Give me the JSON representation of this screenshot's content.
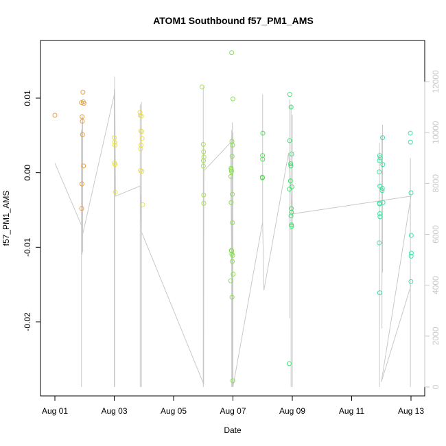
{
  "chart_data": {
    "type": "scatter",
    "title": "ATOM1 Southbound f57_PM1_AMS",
    "xlabel": "Date",
    "ylabel": "f57_PM1_AMS",
    "x_is_date": true,
    "xlim": [
      "2023-08-01",
      "2023-08-13"
    ],
    "x_ticks": [
      {
        "x": "2023-08-01",
        "label": "Aug 01"
      },
      {
        "x": "2023-08-03",
        "label": "Aug 03"
      },
      {
        "x": "2023-08-05",
        "label": "Aug 05"
      },
      {
        "x": "2023-08-07",
        "label": "Aug 07"
      },
      {
        "x": "2023-08-09",
        "label": "Aug 09"
      },
      {
        "x": "2023-08-11",
        "label": "Aug 11"
      },
      {
        "x": "2023-08-13",
        "label": "Aug 13"
      }
    ],
    "ylim": [
      -0.028,
      0.016
    ],
    "y_ticks": [
      {
        "y": 0.01,
        "label": "0.01"
      },
      {
        "y": 0.0,
        "label": "0.00"
      },
      {
        "y": -0.01,
        "label": "-0.01"
      },
      {
        "y": -0.02,
        "label": "-0.02"
      }
    ],
    "y2lim": [
      0,
      12000
    ],
    "y2_ticks": [
      {
        "y": 0,
        "label": "0"
      },
      {
        "y": 2000,
        "label": "2000"
      },
      {
        "y": 4000,
        "label": "4000"
      },
      {
        "y": 6000,
        "label": "6000"
      },
      {
        "y": 8000,
        "label": "8000"
      },
      {
        "y": 10000,
        "label": "10000"
      },
      {
        "y": 12000,
        "label": "12000"
      }
    ],
    "points": [
      {
        "x": "2023-08-01T00:00",
        "y": 0.0077,
        "color": "#e8a040"
      },
      {
        "x": "2023-08-01T21:30",
        "y": 0.0094,
        "color": "#e8a040"
      },
      {
        "x": "2023-08-01T22:00",
        "y": 0.0075,
        "color": "#e8a040"
      },
      {
        "x": "2023-08-01T22:10",
        "y": 0.0069,
        "color": "#e8a040"
      },
      {
        "x": "2023-08-01T22:20",
        "y": 0.0051,
        "color": "#e8a040"
      },
      {
        "x": "2023-08-01T22:40",
        "y": 0.0108,
        "color": "#e8a040"
      },
      {
        "x": "2023-08-01T23:00",
        "y": 0.0095,
        "color": "#e8a040"
      },
      {
        "x": "2023-08-01T23:30",
        "y": 0.0093,
        "color": "#e8a040"
      },
      {
        "x": "2023-08-01T23:10",
        "y": 0.0009,
        "color": "#e8a040"
      },
      {
        "x": "2023-08-01T21:50",
        "y": -0.0015,
        "color": "#e8a040"
      },
      {
        "x": "2023-08-01T21:40",
        "y": -0.0048,
        "color": "#e8a040"
      },
      {
        "x": "2023-08-03T00:00",
        "y": 0.0047,
        "color": "#e8e050"
      },
      {
        "x": "2023-08-03T00:20",
        "y": 0.0041,
        "color": "#e8e050"
      },
      {
        "x": "2023-08-03T00:30",
        "y": 0.0037,
        "color": "#e8e050"
      },
      {
        "x": "2023-08-03T00:10",
        "y": 0.0013,
        "color": "#e8e050"
      },
      {
        "x": "2023-08-03T00:40",
        "y": 0.0011,
        "color": "#e8e050"
      },
      {
        "x": "2023-08-03T00:50",
        "y": -0.0026,
        "color": "#e8e050"
      },
      {
        "x": "2023-08-03T20:50",
        "y": 0.0081,
        "color": "#e8e050"
      },
      {
        "x": "2023-08-03T21:00",
        "y": 0.0077,
        "color": "#e8e050"
      },
      {
        "x": "2023-08-03T22:00",
        "y": 0.0076,
        "color": "#e8e050"
      },
      {
        "x": "2023-08-03T21:30",
        "y": 0.0056,
        "color": "#e8e050"
      },
      {
        "x": "2023-08-03T22:10",
        "y": 0.0055,
        "color": "#e8e050"
      },
      {
        "x": "2023-08-03T22:30",
        "y": 0.0046,
        "color": "#e8e050"
      },
      {
        "x": "2023-08-03T21:40",
        "y": 0.0037,
        "color": "#e8e050"
      },
      {
        "x": "2023-08-03T21:20",
        "y": 0.0032,
        "color": "#e8e050"
      },
      {
        "x": "2023-08-03T21:10",
        "y": 0.0003,
        "color": "#e8e050"
      },
      {
        "x": "2023-08-03T22:20",
        "y": 0.0002,
        "color": "#e8e050"
      },
      {
        "x": "2023-08-03T23:00",
        "y": -0.0043,
        "color": "#e8e050"
      },
      {
        "x": "2023-08-05T23:00",
        "y": 0.0115,
        "color": "#a8e050"
      },
      {
        "x": "2023-08-06T00:00",
        "y": 0.0038,
        "color": "#a8e050"
      },
      {
        "x": "2023-08-06T00:15",
        "y": 0.0028,
        "color": "#a8e050"
      },
      {
        "x": "2023-08-06T00:30",
        "y": 0.0021,
        "color": "#a8e050"
      },
      {
        "x": "2023-08-06T00:10",
        "y": 0.0016,
        "color": "#a8e050"
      },
      {
        "x": "2023-08-06T00:05",
        "y": 0.0009,
        "color": "#a8e050"
      },
      {
        "x": "2023-08-06T00:20",
        "y": -0.003,
        "color": "#a8e050"
      },
      {
        "x": "2023-08-06T00:25",
        "y": -0.0041,
        "color": "#a8e050"
      },
      {
        "x": "2023-08-06T23:00",
        "y": 0.0161,
        "color": "#88e050"
      },
      {
        "x": "2023-08-07T00:00",
        "y": 0.0099,
        "color": "#88e050"
      },
      {
        "x": "2023-08-06T23:10",
        "y": 0.0042,
        "color": "#88e050"
      },
      {
        "x": "2023-08-06T23:40",
        "y": 0.0037,
        "color": "#88e050"
      },
      {
        "x": "2023-08-06T23:20",
        "y": 0.0022,
        "color": "#88e050"
      },
      {
        "x": "2023-08-06T22:30",
        "y": 0.0006,
        "color": "#88e050"
      },
      {
        "x": "2023-08-06T22:40",
        "y": 0.0004,
        "color": "#88e050"
      },
      {
        "x": "2023-08-06T22:50",
        "y": 0.0002,
        "color": "#88e050"
      },
      {
        "x": "2023-08-06T22:20",
        "y": -0.0005,
        "color": "#88e050"
      },
      {
        "x": "2023-08-06T23:30",
        "y": -0.0029,
        "color": "#88e050"
      },
      {
        "x": "2023-08-06T22:35",
        "y": -0.004,
        "color": "#88e050"
      },
      {
        "x": "2023-08-06T23:35",
        "y": -0.0067,
        "color": "#88e050"
      },
      {
        "x": "2023-08-06T22:45",
        "y": -0.0104,
        "color": "#88e050"
      },
      {
        "x": "2023-08-06T22:55",
        "y": -0.0105,
        "color": "#88e050"
      },
      {
        "x": "2023-08-06T23:05",
        "y": -0.0109,
        "color": "#88e050"
      },
      {
        "x": "2023-08-06T23:45",
        "y": -0.0111,
        "color": "#88e050"
      },
      {
        "x": "2023-08-06T23:25",
        "y": -0.0119,
        "color": "#88e050"
      },
      {
        "x": "2023-08-07T00:10",
        "y": -0.0136,
        "color": "#88e050"
      },
      {
        "x": "2023-08-06T22:15",
        "y": -0.0145,
        "color": "#88e050"
      },
      {
        "x": "2023-08-06T23:15",
        "y": -0.0167,
        "color": "#88e050"
      },
      {
        "x": "2023-08-06T23:50",
        "y": -0.0279,
        "color": "#88e050"
      },
      {
        "x": "2023-08-08T00:10",
        "y": 0.0053,
        "color": "#50e050"
      },
      {
        "x": "2023-08-07T23:55",
        "y": 0.0023,
        "color": "#50e050"
      },
      {
        "x": "2023-08-08T00:00",
        "y": 0.0018,
        "color": "#50e050"
      },
      {
        "x": "2023-08-07T23:45",
        "y": -0.0006,
        "color": "#50e050"
      },
      {
        "x": "2023-08-07T23:50",
        "y": -0.0007,
        "color": "#50e050"
      },
      {
        "x": "2023-08-08T22:00",
        "y": 0.0105,
        "color": "#40e070"
      },
      {
        "x": "2023-08-08T23:00",
        "y": 0.0088,
        "color": "#40e070"
      },
      {
        "x": "2023-08-08T21:50",
        "y": 0.0043,
        "color": "#40e070"
      },
      {
        "x": "2023-08-08T23:30",
        "y": 0.0025,
        "color": "#40e070"
      },
      {
        "x": "2023-08-08T22:40",
        "y": 0.0012,
        "color": "#40e070"
      },
      {
        "x": "2023-08-08T22:50",
        "y": 0.0009,
        "color": "#40e070"
      },
      {
        "x": "2023-08-08T22:30",
        "y": -0.0011,
        "color": "#40e070"
      },
      {
        "x": "2023-08-08T23:40",
        "y": -0.0019,
        "color": "#40e070"
      },
      {
        "x": "2023-08-08T21:40",
        "y": -0.0022,
        "color": "#40e070"
      },
      {
        "x": "2023-08-08T23:10",
        "y": -0.0048,
        "color": "#40e070"
      },
      {
        "x": "2023-08-08T23:20",
        "y": -0.0053,
        "color": "#40e070"
      },
      {
        "x": "2023-08-08T22:55",
        "y": -0.0058,
        "color": "#40e070"
      },
      {
        "x": "2023-08-08T23:15",
        "y": -0.007,
        "color": "#40e070"
      },
      {
        "x": "2023-08-08T23:25",
        "y": -0.0072,
        "color": "#40e070"
      },
      {
        "x": "2023-08-08T21:30",
        "y": -0.0256,
        "color": "#40e070"
      },
      {
        "x": "2023-08-11T22:40",
        "y": 0.0023,
        "color": "#40e0a0"
      },
      {
        "x": "2023-08-11T23:00",
        "y": 0.002,
        "color": "#40e0a0"
      },
      {
        "x": "2023-08-11T22:30",
        "y": 0.0016,
        "color": "#40e0a0"
      },
      {
        "x": "2023-08-12T01:00",
        "y": 0.0047,
        "color": "#40e0a0"
      },
      {
        "x": "2023-08-12T01:10",
        "y": 0.0011,
        "color": "#40e0a0"
      },
      {
        "x": "2023-08-11T22:20",
        "y": 0.0001,
        "color": "#40e0a0"
      },
      {
        "x": "2023-08-11T22:50",
        "y": -0.0018,
        "color": "#40e0a0"
      },
      {
        "x": "2023-08-12T00:50",
        "y": -0.0021,
        "color": "#40e0a0"
      },
      {
        "x": "2023-08-12T00:40",
        "y": -0.0024,
        "color": "#40e0a0"
      },
      {
        "x": "2023-08-11T22:25",
        "y": -0.0041,
        "color": "#40e0a0"
      },
      {
        "x": "2023-08-11T22:35",
        "y": -0.0042,
        "color": "#40e0a0"
      },
      {
        "x": "2023-08-12T01:20",
        "y": -0.004,
        "color": "#40e0a0"
      },
      {
        "x": "2023-08-11T22:45",
        "y": -0.0055,
        "color": "#40e0a0"
      },
      {
        "x": "2023-08-11T22:55",
        "y": -0.0059,
        "color": "#40e0a0"
      },
      {
        "x": "2023-08-11T22:15",
        "y": -0.0094,
        "color": "#40e0a0"
      },
      {
        "x": "2023-08-11T22:40",
        "y": -0.0161,
        "color": "#40e0a0"
      },
      {
        "x": "2023-08-12T23:30",
        "y": 0.0053,
        "color": "#40e0b0"
      },
      {
        "x": "2023-08-12T23:35",
        "y": 0.0041,
        "color": "#40e0b0"
      },
      {
        "x": "2023-08-13T00:00",
        "y": -0.0027,
        "color": "#40e0b0"
      },
      {
        "x": "2023-08-13T00:10",
        "y": -0.0084,
        "color": "#40e0b0"
      },
      {
        "x": "2023-08-13T00:15",
        "y": -0.0108,
        "color": "#40e0b0"
      },
      {
        "x": "2023-08-13T00:05",
        "y": -0.0112,
        "color": "#40e0b0"
      },
      {
        "x": "2023-08-12T23:55",
        "y": -0.0146,
        "color": "#40e0b0"
      }
    ],
    "secondary_line": {
      "color": "#c8c8c8",
      "points": [
        {
          "x": "2023-08-01T00:00",
          "y2": 8800
        },
        {
          "x": "2023-08-01T22:00",
          "y2": 6300
        },
        {
          "x": "2023-08-01T22:30",
          "y2": 6000
        },
        {
          "x": "2023-08-03T00:30",
          "y2": 11600
        },
        {
          "x": "2023-08-03T01:00",
          "y2": 7500
        },
        {
          "x": "2023-08-03T21:00",
          "y2": 7900
        },
        {
          "x": "2023-08-03T22:00",
          "y": null,
          "y2": 6100
        },
        {
          "x": "2023-08-06T00:00",
          "y2": 150
        },
        {
          "x": "2023-08-06T00:30",
          "y2": 8500
        },
        {
          "x": "2023-08-06T22:00",
          "y2": 9600
        },
        {
          "x": "2023-08-07T00:00",
          "y2": 0
        },
        {
          "x": "2023-08-08T00:00",
          "y2": 6500
        },
        {
          "x": "2023-08-08T01:00",
          "y2": 3800
        },
        {
          "x": "2023-08-08T21:00",
          "y2": 9200
        },
        {
          "x": "2023-08-09T00:00",
          "y2": 6800
        },
        {
          "x": "2023-08-13T00:00",
          "y2": 7500
        },
        {
          "x": "2023-08-12T00:00",
          "y2": 200
        },
        {
          "x": "2023-08-13T00:00",
          "y2": 4000
        }
      ],
      "spikes": [
        {
          "x": "2023-08-01T21:30",
          "y2_min": 0,
          "y2_max": 10100
        },
        {
          "x": "2023-08-01T22:00",
          "y2_min": 5200,
          "y2_max": 10700
        },
        {
          "x": "2023-08-01T22:30",
          "y2_min": 5300,
          "y2_max": 10600
        },
        {
          "x": "2023-08-03T00:00",
          "y2_min": 0,
          "y2_max": 11700
        },
        {
          "x": "2023-08-03T00:20",
          "y2_min": 0,
          "y2_max": 12200
        },
        {
          "x": "2023-08-03T21:00",
          "y2_min": 0,
          "y2_max": 11100
        },
        {
          "x": "2023-08-03T22:00",
          "y2_min": 0,
          "y2_max": 11200
        },
        {
          "x": "2023-08-06T00:00",
          "y2_min": 0,
          "y2_max": 11800
        },
        {
          "x": "2023-08-06T00:20",
          "y2_min": 100,
          "y2_max": 9500
        },
        {
          "x": "2023-08-06T23:00",
          "y2_min": 0,
          "y2_max": 10100
        },
        {
          "x": "2023-08-06T23:30",
          "y2_min": 0,
          "y2_max": 10400
        },
        {
          "x": "2023-08-07T00:00",
          "y2_min": 0,
          "y2_max": 10000
        },
        {
          "x": "2023-08-08T00:00",
          "y2_min": 6500,
          "y2_max": 11500
        },
        {
          "x": "2023-08-08T22:00",
          "y2_min": 2700,
          "y2_max": 11300
        },
        {
          "x": "2023-08-08T23:00",
          "y2_min": 0,
          "y2_max": 11100
        },
        {
          "x": "2023-08-09T00:00",
          "y2_min": 0,
          "y2_max": 10700
        },
        {
          "x": "2023-08-11T22:30",
          "y2_min": 0,
          "y2_max": 9600
        },
        {
          "x": "2023-08-12T00:30",
          "y2_min": 2300,
          "y2_max": 9900
        },
        {
          "x": "2023-08-12T01:00",
          "y2_min": 4500,
          "y2_max": 10300
        },
        {
          "x": "2023-08-12T23:30",
          "y2_min": 0,
          "y2_max": 9000
        }
      ]
    },
    "grid": false,
    "legend": "none"
  }
}
